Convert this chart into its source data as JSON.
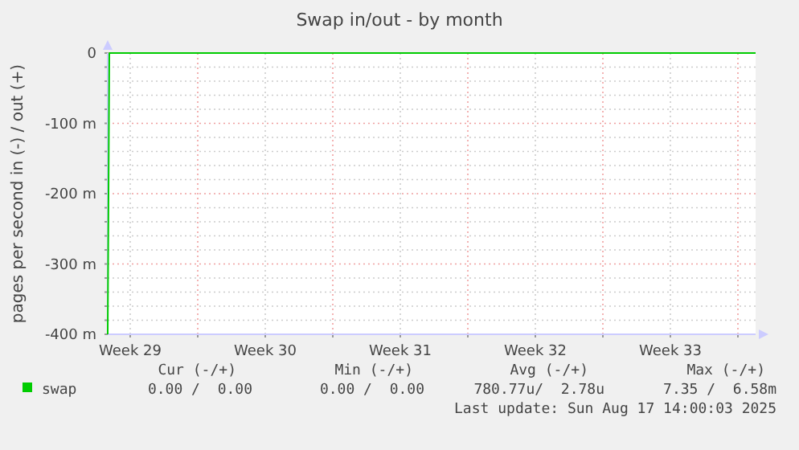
{
  "chart_data": {
    "type": "line",
    "title": "Swap in/out - by month",
    "ylabel": "pages per second in (-) / out (+)",
    "x": [
      "2025-07-16T08:00",
      "2025-07-16T10:00",
      "2025-08-18T22:00"
    ],
    "series": [
      {
        "name": "swap",
        "color": "#00cc00",
        "values": [
          -400,
          0,
          0
        ]
      }
    ],
    "xlim": [
      "2025-07-16T08:00",
      "2025-08-18T22:00"
    ],
    "xticks": [
      {
        "value": "2025-07-17T12:00",
        "label": "Week 29"
      },
      {
        "value": "2025-07-21T00:00",
        "label": null
      },
      {
        "value": "2025-07-24T12:00",
        "label": "Week 30"
      },
      {
        "value": "2025-07-28T00:00",
        "label": null
      },
      {
        "value": "2025-07-31T12:00",
        "label": "Week 31"
      },
      {
        "value": "2025-08-04T00:00",
        "label": null
      },
      {
        "value": "2025-08-07T12:00",
        "label": "Week 32"
      },
      {
        "value": "2025-08-11T00:00",
        "label": null
      },
      {
        "value": "2025-08-14T12:00",
        "label": "Week 33"
      },
      {
        "value": "2025-08-18T00:00",
        "label": null
      }
    ],
    "ylim": [
      -400,
      0
    ],
    "yticks": [
      {
        "value": 0,
        "label": "0"
      },
      {
        "value": -20,
        "label": null
      },
      {
        "value": -40,
        "label": null
      },
      {
        "value": -60,
        "label": null
      },
      {
        "value": -80,
        "label": null
      },
      {
        "value": -100,
        "label": "-100 m"
      },
      {
        "value": -120,
        "label": null
      },
      {
        "value": -140,
        "label": null
      },
      {
        "value": -160,
        "label": null
      },
      {
        "value": -180,
        "label": null
      },
      {
        "value": -200,
        "label": "-200 m"
      },
      {
        "value": -220,
        "label": null
      },
      {
        "value": -240,
        "label": null
      },
      {
        "value": -260,
        "label": null
      },
      {
        "value": -280,
        "label": null
      },
      {
        "value": -300,
        "label": "-300 m"
      },
      {
        "value": -320,
        "label": null
      },
      {
        "value": -340,
        "label": null
      },
      {
        "value": -360,
        "label": null
      },
      {
        "value": -380,
        "label": null
      },
      {
        "value": -400,
        "label": "-400 m"
      }
    ],
    "grid": true,
    "legend": "bottom left",
    "marker": "none",
    "line_style": "solid",
    "annotations": [
      "Cur (-/+)",
      "Min (-/+)",
      "Avg (-/+)",
      "Max (-/+)",
      "0.00 /  0.00",
      "0.00 /  0.00",
      "780.77u/  2.78u",
      "7.35 /  6.58m",
      "Last update: Sun Aug 17 14:00:03 2025"
    ]
  }
}
